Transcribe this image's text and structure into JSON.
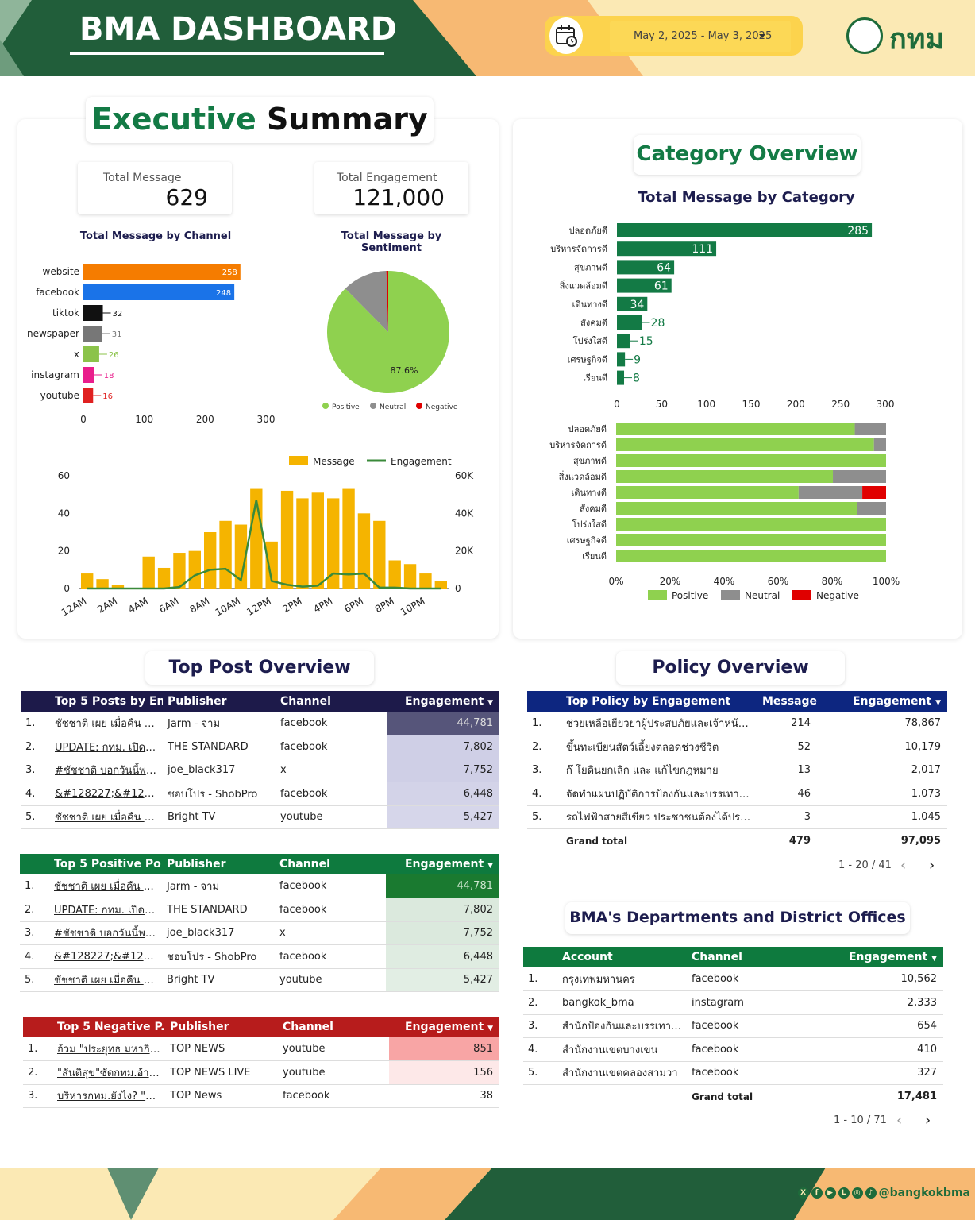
{
  "header": {
    "title": "BMA DASHBOARD",
    "date_range": "May 2, 2025 - May 3, 2025",
    "logo_text": "กทม"
  },
  "exec": {
    "title_green": "Executive",
    "title_black": "Summary",
    "kpi": [
      {
        "label": "Total Message",
        "value": "629"
      },
      {
        "label": "Total Engagement",
        "value": "121,000"
      }
    ]
  },
  "channel_chart": {
    "title": "Total Message by Channel"
  },
  "sentiment_chart": {
    "title": "Total Message by Sentiment",
    "slice_label": "87.6%",
    "legend": [
      "Positive",
      "Neutral",
      "Negative"
    ]
  },
  "hour_chart": {
    "legend": [
      "Message",
      "Engagement"
    ]
  },
  "category": {
    "title": "Category Overview",
    "chart_title": "Total Message by Category",
    "legend": [
      "Positive",
      "Neutral",
      "Negative"
    ]
  },
  "chart_data": [
    {
      "type": "bar",
      "orientation": "horizontal",
      "title": "Total Message by Channel",
      "categories": [
        "website",
        "facebook",
        "tiktok",
        "newspaper",
        "x",
        "instagram",
        "youtube"
      ],
      "values": [
        258,
        248,
        32,
        31,
        26,
        18,
        16
      ],
      "colors": [
        "#f57c00",
        "#1a73e8",
        "#111111",
        "#777777",
        "#8bc34a",
        "#e91e8c",
        "#e02020"
      ],
      "xlim": [
        0,
        300
      ],
      "xticks": [
        0,
        100,
        200,
        300
      ]
    },
    {
      "type": "pie",
      "title": "Total Message by Sentiment",
      "categories": [
        "Positive",
        "Neutral",
        "Negative"
      ],
      "values": [
        87.6,
        11.9,
        0.5
      ],
      "colors": [
        "#8fd14f",
        "#8e8e8e",
        "#e00000"
      ]
    },
    {
      "type": "bar",
      "title": "",
      "categories": [
        "12AM",
        "1AM",
        "2AM",
        "3AM",
        "4AM",
        "5AM",
        "6AM",
        "7AM",
        "8AM",
        "9AM",
        "10AM",
        "11AM",
        "12PM",
        "1PM",
        "2PM",
        "3PM",
        "4PM",
        "5PM",
        "6PM",
        "7PM",
        "8PM",
        "9PM",
        "10PM",
        "11PM"
      ],
      "xticks": [
        "12AM",
        "2AM",
        "4AM",
        "6AM",
        "8AM",
        "10AM",
        "12PM",
        "2PM",
        "4PM",
        "6PM",
        "8PM",
        "10PM"
      ],
      "series": [
        {
          "name": "Message",
          "axis": "left",
          "values": [
            8,
            5,
            2,
            0,
            17,
            11,
            19,
            20,
            30,
            36,
            34,
            53,
            25,
            52,
            48,
            51,
            48,
            53,
            40,
            36,
            15,
            13,
            8,
            4
          ],
          "color": "#f5b400"
        },
        {
          "name": "Engagement",
          "axis": "right",
          "type": "line",
          "values": [
            0,
            0,
            0,
            0,
            0,
            0,
            800,
            7000,
            10000,
            10500,
            4500,
            47000,
            4000,
            2000,
            1000,
            1500,
            8000,
            7500,
            8000,
            500,
            500,
            0,
            0,
            0
          ],
          "color": "#3a8a3a"
        }
      ],
      "ylim": [
        0,
        60
      ],
      "yticks": [
        0,
        20,
        40,
        60
      ],
      "y2lim": [
        0,
        60000
      ],
      "y2ticks": [
        "0",
        "20K",
        "40K",
        "60K"
      ]
    },
    {
      "type": "bar",
      "orientation": "horizontal",
      "title": "Total Message by Category",
      "categories": [
        "ปลอดภัยดี",
        "บริหารจัดการดี",
        "สุขภาพดี",
        "สิ่งแวดล้อมดี",
        "เดินทางดี",
        "สังคมดี",
        "โปร่งใสดี",
        "เศรษฐกิจดี",
        "เรียนดี"
      ],
      "values": [
        285,
        111,
        64,
        61,
        34,
        28,
        15,
        9,
        8
      ],
      "color": "#137a45",
      "xlim": [
        0,
        300
      ],
      "xticks": [
        0,
        50,
        100,
        150,
        200,
        250,
        300
      ]
    },
    {
      "type": "bar",
      "orientation": "horizontal",
      "stacked": "percent",
      "categories": [
        "ปลอดภัยดี",
        "บริหารจัดการดี",
        "สุขภาพดี",
        "สิ่งแวดล้อมดี",
        "เดินทางดี",
        "สังคมดี",
        "โปร่งใสดี",
        "เศรษฐกิจดี",
        "เรียนดี"
      ],
      "series": [
        {
          "name": "Positive",
          "values": [
            88.4,
            95.5,
            100,
            80.3,
            67.6,
            89.3,
            100,
            100,
            100
          ],
          "color": "#8fd14f"
        },
        {
          "name": "Neutral",
          "values": [
            11.6,
            4.5,
            0,
            19.7,
            23.6,
            10.7,
            0,
            0,
            0
          ],
          "color": "#8e8e8e"
        },
        {
          "name": "Negative",
          "values": [
            0,
            0,
            0,
            0,
            8.8,
            0,
            0,
            0,
            0
          ],
          "color": "#e00000"
        }
      ],
      "xticks": [
        "0%",
        "20%",
        "40%",
        "60%",
        "80%",
        "100%"
      ]
    }
  ],
  "top_post": {
    "title": "Top Post Overview",
    "all": {
      "headers": [
        "Top 5 Posts by En...",
        "Publisher",
        "Channel",
        "Engagement"
      ],
      "rows": [
        [
          "1.",
          "ชัชชาติ เผย เมื่อคืน จนท.เ...",
          "Jarm - จาม",
          "facebook",
          "44,781"
        ],
        [
          "2.",
          "UPDATE: กทม. เปิดให้ป...",
          "THE STANDARD",
          "facebook",
          "7,802"
        ],
        [
          "3.",
          "#ชัชชาติ บอกวันนี้พบอีกอ...",
          "joe_black317",
          "x",
          "7,752"
        ],
        [
          "4.",
          "&#128227;&#12805...",
          "ชอบโปร - ShobPro",
          "facebook",
          "6,448"
        ],
        [
          "5.",
          "ชัชชาติ เผย เมื่อคืน จนท.เ...",
          "Bright TV",
          "youtube",
          "5,427"
        ]
      ]
    },
    "positive": {
      "headers": [
        "Top 5 Positive Po...",
        "Publisher",
        "Channel",
        "Engagement"
      ],
      "rows": [
        [
          "1.",
          "ชัชชาติ เผย เมื่อคืน จนท.เ...",
          "Jarm - จาม",
          "facebook",
          "44,781"
        ],
        [
          "2.",
          "UPDATE: กทม. เปิดให้ป...",
          "THE STANDARD",
          "facebook",
          "7,802"
        ],
        [
          "3.",
          "#ชัชชาติ บอกวันนี้พบอีกอ...",
          "joe_black317",
          "x",
          "7,752"
        ],
        [
          "4.",
          "&#128227;&#12805...",
          "ชอบโปร - ShobPro",
          "facebook",
          "6,448"
        ],
        [
          "5.",
          "ชัชชาติ เผย เมื่อคืน จนท.เ...",
          "Bright TV",
          "youtube",
          "5,427"
        ]
      ]
    },
    "negative": {
      "headers": [
        "Top 5 Negative P...",
        "Publisher",
        "Channel",
        "Engagement"
      ],
      "rows": [
        [
          "1.",
          "อ้วม \"ประยุทธ มหากิจศิริ\"...",
          "TOP NEWS",
          "youtube",
          "851"
        ],
        [
          "2.",
          "\"สันติสุข\"ซัดกทม.อ้างเหตุผี...",
          "TOP NEWS LIVE",
          "youtube",
          "156"
        ],
        [
          "3.",
          "บริหารกทม.ยังไง? \"สันติสุ...",
          "TOP News",
          "facebook",
          "38"
        ]
      ]
    }
  },
  "policy": {
    "title": "Policy Overview",
    "headers": [
      "Top Policy by Engagement",
      "Message",
      "Engagement"
    ],
    "rows": [
      [
        "1.",
        "ช่วยเหลือเยียวยาผู้ประสบภัยและเจ้าหน้า...",
        "214",
        "78,867"
      ],
      [
        "2.",
        "ขึ้นทะเบียนสัตว์เลี้ยงตลอดช่วงชีวิต",
        "52",
        "10,179"
      ],
      [
        "3.",
        "ก๊ โยดินยกเลิก และ แก้ไขกฎหมาย",
        "13",
        "2,017"
      ],
      [
        "4.",
        "จัดทำแผนปฏิบัติการป้องกันและบรรเทาส...",
        "46",
        "1,073"
      ],
      [
        "5.",
        "รถไฟฟ้าสายสีเขียว ประชาชนต้องได้ประโ...",
        "3",
        "1,045"
      ]
    ],
    "total": [
      "Grand total",
      "479",
      "97,095"
    ],
    "pager": "1 - 20 / 41"
  },
  "dept": {
    "title": "BMA's Departments and District Offices",
    "headers": [
      "Account",
      "Channel",
      "Engagement"
    ],
    "rows": [
      [
        "1.",
        "กรุงเทพมหานคร",
        "facebook",
        "10,562"
      ],
      [
        "2.",
        "bangkok_bma",
        "instagram",
        "2,333"
      ],
      [
        "3.",
        "สำนักป้องกันและบรรเทาสาธาร...",
        "facebook",
        "654"
      ],
      [
        "4.",
        "สำนักงานเขตบางเขน",
        "facebook",
        "410"
      ],
      [
        "5.",
        "สำนักงานเขตคลองสามวา",
        "facebook",
        "327"
      ]
    ],
    "total": [
      "Grand total",
      "17,481"
    ],
    "pager": "1 - 10 / 71"
  },
  "footer": {
    "handle": "@bangkokbma"
  },
  "colors": {
    "green": "#1e6b3a",
    "navy": "#1d1d4e",
    "policy_navy": "#0d2680",
    "neg_red": "#b71c1c",
    "table_green": "#0e7a3e"
  }
}
